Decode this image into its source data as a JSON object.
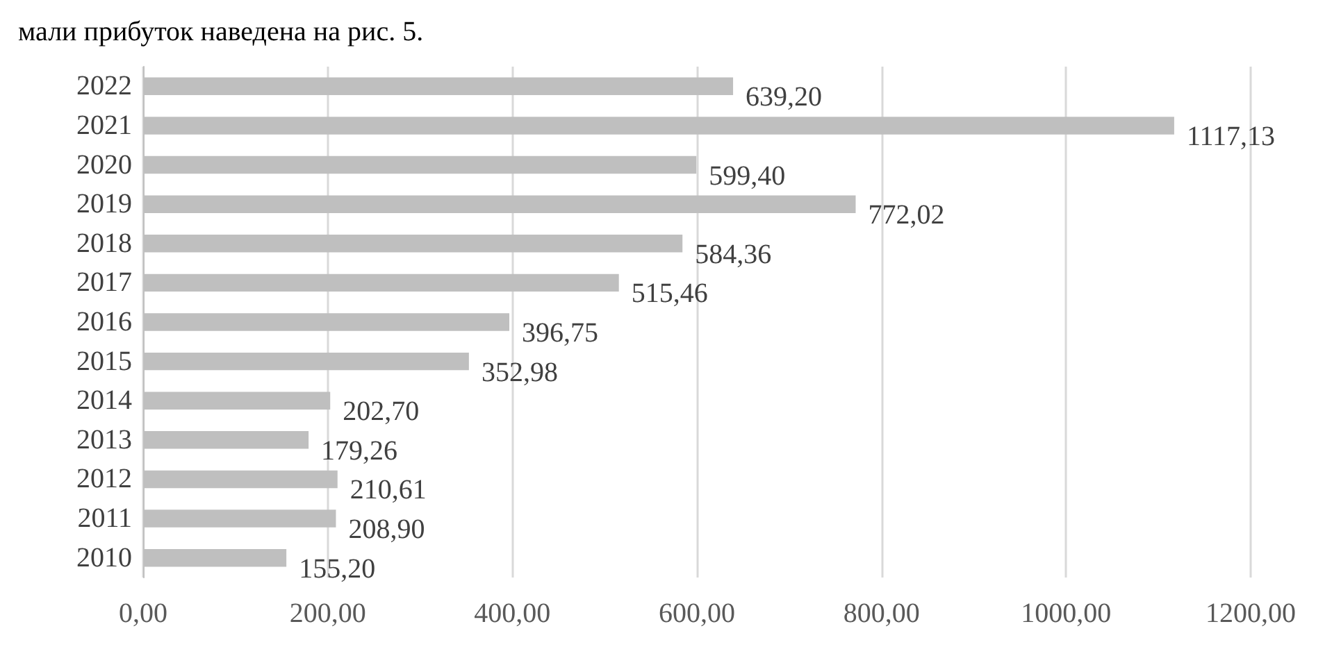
{
  "chart_data": {
    "type": "bar",
    "orientation": "horizontal",
    "categories": [
      "2022",
      "2021",
      "2020",
      "2019",
      "2018",
      "2017",
      "2016",
      "2015",
      "2014",
      "2013",
      "2012",
      "2011",
      "2010"
    ],
    "values": [
      639.2,
      1117.13,
      599.4,
      772.02,
      584.36,
      515.46,
      396.75,
      352.98,
      202.7,
      179.26,
      210.61,
      208.9,
      155.2
    ],
    "colors": [
      "#bfbfbf",
      "#bfbfbf",
      "#bfbfbf",
      "#bfbfbf",
      "#bfbfbf",
      "#bfbfbf",
      "#bfbfbf",
      "#bfbfbf",
      "#bfbfbf",
      "#bfbfbf",
      "#bfbfbf",
      "#bfbfbf",
      "#bfbfbf"
    ],
    "value_labels": [
      "639,20",
      "1117,13",
      "599,40",
      "772,02",
      "584,36",
      "515,46",
      "396,75",
      "352,98",
      "202,70",
      "179,26",
      "210,61",
      "208,90",
      "155,20"
    ],
    "xlim": [
      0,
      1200
    ],
    "xticks": [
      {
        "value": 0,
        "label": "0,00"
      },
      {
        "value": 200,
        "label": "200,00"
      },
      {
        "value": 400,
        "label": "400,00"
      },
      {
        "value": 600,
        "label": "600,00"
      },
      {
        "value": 800,
        "label": "800,00"
      },
      {
        "value": 1000,
        "label": "1000,00"
      },
      {
        "value": 1200,
        "label": "1200,00"
      }
    ],
    "grid": "x",
    "annotations": [
      "мали прибуток наведена на рис. 5."
    ]
  }
}
